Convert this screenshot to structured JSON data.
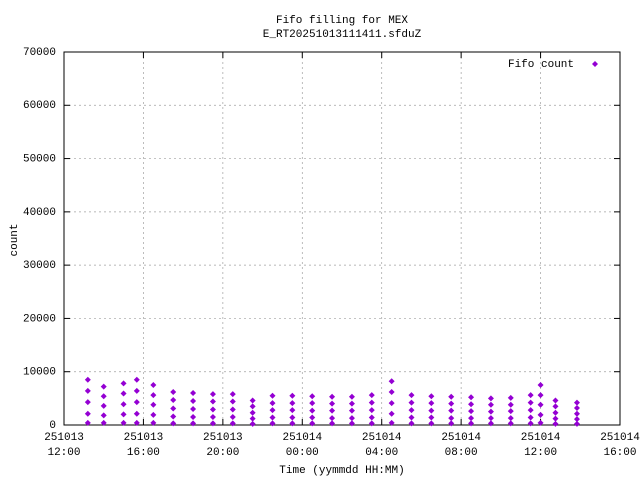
{
  "chart_data": {
    "type": "scatter",
    "title": "Fifo filling for MEX",
    "subtitle": "E_RT20251013111411.sfduZ",
    "xlabel": "Time (yymmdd HH:MM)",
    "ylabel": "count",
    "legend": "top-right",
    "grid": true,
    "xlim": [
      "251013 12:00",
      "251014 16:00"
    ],
    "xticks": [
      {
        "value": "251013 12:00",
        "label": [
          "251013",
          "12:00"
        ]
      },
      {
        "value": "251013 16:00",
        "label": [
          "251013",
          "16:00"
        ]
      },
      {
        "value": "251013 20:00",
        "label": [
          "251013",
          "20:00"
        ]
      },
      {
        "value": "251014 00:00",
        "label": [
          "251014",
          "00:00"
        ]
      },
      {
        "value": "251014 04:00",
        "label": [
          "251014",
          "04:00"
        ]
      },
      {
        "value": "251014 08:00",
        "label": [
          "251014",
          "08:00"
        ]
      },
      {
        "value": "251014 12:00",
        "label": [
          "251014",
          "12:00"
        ]
      },
      {
        "value": "251014 16:00",
        "label": [
          "251014",
          "16:00"
        ]
      }
    ],
    "ylim": [
      0,
      70000
    ],
    "yticks": [
      0,
      10000,
      20000,
      30000,
      40000,
      50000,
      60000,
      70000
    ],
    "series": [
      {
        "name": "Fifo count",
        "color": "#9400d3",
        "x": [
          "251013 13:12",
          "251013 13:12",
          "251013 13:12",
          "251013 13:12",
          "251013 13:12",
          "251013 14:00",
          "251013 14:00",
          "251013 14:00",
          "251013 14:00",
          "251013 14:00",
          "251013 15:00",
          "251013 15:00",
          "251013 15:00",
          "251013 15:00",
          "251013 15:00",
          "251013 15:40",
          "251013 15:40",
          "251013 15:40",
          "251013 15:40",
          "251013 15:40",
          "251013 16:30",
          "251013 16:30",
          "251013 16:30",
          "251013 16:30",
          "251013 16:30",
          "251013 17:30",
          "251013 17:30",
          "251013 17:30",
          "251013 17:30",
          "251013 17:30",
          "251013 18:30",
          "251013 18:30",
          "251013 18:30",
          "251013 18:30",
          "251013 18:30",
          "251013 19:30",
          "251013 19:30",
          "251013 19:30",
          "251013 19:30",
          "251013 19:30",
          "251013 20:30",
          "251013 20:30",
          "251013 20:30",
          "251013 20:30",
          "251013 20:30",
          "251013 21:30",
          "251013 21:30",
          "251013 21:30",
          "251013 21:30",
          "251013 21:30",
          "251013 22:30",
          "251013 22:30",
          "251013 22:30",
          "251013 22:30",
          "251013 22:30",
          "251013 23:30",
          "251013 23:30",
          "251013 23:30",
          "251013 23:30",
          "251013 23:30",
          "251014 00:30",
          "251014 00:30",
          "251014 00:30",
          "251014 00:30",
          "251014 00:30",
          "251014 01:30",
          "251014 01:30",
          "251014 01:30",
          "251014 01:30",
          "251014 01:30",
          "251014 02:30",
          "251014 02:30",
          "251014 02:30",
          "251014 02:30",
          "251014 02:30",
          "251014 03:30",
          "251014 03:30",
          "251014 03:30",
          "251014 03:30",
          "251014 03:30",
          "251014 04:30",
          "251014 04:30",
          "251014 04:30",
          "251014 04:30",
          "251014 04:30",
          "251014 05:30",
          "251014 05:30",
          "251014 05:30",
          "251014 05:30",
          "251014 05:30",
          "251014 06:30",
          "251014 06:30",
          "251014 06:30",
          "251014 06:30",
          "251014 06:30",
          "251014 07:30",
          "251014 07:30",
          "251014 07:30",
          "251014 07:30",
          "251014 07:30",
          "251014 08:30",
          "251014 08:30",
          "251014 08:30",
          "251014 08:30",
          "251014 08:30",
          "251014 09:30",
          "251014 09:30",
          "251014 09:30",
          "251014 09:30",
          "251014 09:30",
          "251014 10:30",
          "251014 10:30",
          "251014 10:30",
          "251014 10:30",
          "251014 10:30",
          "251014 11:30",
          "251014 11:30",
          "251014 11:30",
          "251014 11:30",
          "251014 11:30",
          "251014 12:00",
          "251014 12:00",
          "251014 12:00",
          "251014 12:00",
          "251014 12:00",
          "251014 12:45",
          "251014 12:45",
          "251014 12:45",
          "251014 12:45",
          "251014 12:45",
          "251014 13:50",
          "251014 13:50",
          "251014 13:50",
          "251014 13:50",
          "251014 13:50"
        ],
        "values": [
          8500,
          6400,
          4300,
          2100,
          400,
          7200,
          5400,
          3600,
          1800,
          400,
          7800,
          5900,
          3900,
          2000,
          400,
          8500,
          6400,
          4300,
          2100,
          400,
          7500,
          5600,
          3800,
          1900,
          400,
          6200,
          4700,
          3100,
          1600,
          300,
          6000,
          4500,
          3000,
          1500,
          300,
          5800,
          4400,
          2900,
          1500,
          300,
          5800,
          4400,
          2900,
          1500,
          300,
          4600,
          3500,
          2300,
          1200,
          200,
          5500,
          4100,
          2800,
          1400,
          300,
          5500,
          4100,
          2800,
          1400,
          300,
          5400,
          4100,
          2700,
          1400,
          300,
          5300,
          4000,
          2700,
          1300,
          300,
          5300,
          4000,
          2700,
          1300,
          300,
          5600,
          4200,
          2800,
          1400,
          300,
          8200,
          6200,
          4100,
          2100,
          400,
          5600,
          4200,
          2800,
          1400,
          300,
          5400,
          4100,
          2700,
          1400,
          300,
          5300,
          4000,
          2700,
          1300,
          300,
          5200,
          3900,
          2600,
          1300,
          300,
          5000,
          3800,
          2500,
          1300,
          300,
          5100,
          3800,
          2600,
          1300,
          300,
          5600,
          4200,
          2800,
          1400,
          300,
          7500,
          5600,
          3800,
          1900,
          400,
          4600,
          3500,
          2300,
          1200,
          200,
          4200,
          3200,
          2100,
          1100,
          200
        ]
      }
    ]
  }
}
